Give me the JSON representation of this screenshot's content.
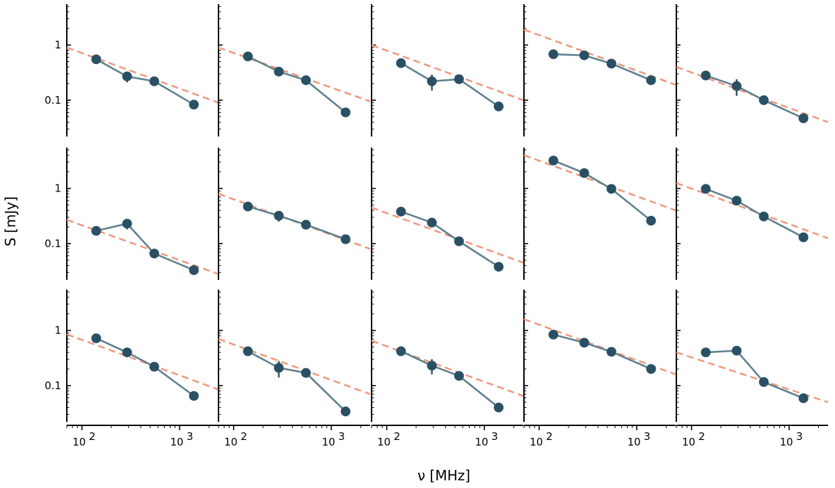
{
  "figure": {
    "xlabel": "ν [MHz]",
    "ylabel": "S [mJy]",
    "x_tick_labels": [
      {
        "base": "10",
        "exp": "2",
        "value": 100
      },
      {
        "base": "10",
        "exp": "3",
        "value": 1000
      }
    ],
    "y_tick_labels": [
      {
        "text": "1",
        "value": 1
      },
      {
        "text": "0.1",
        "value": 0.1
      }
    ],
    "colors": {
      "data": "#2a5064",
      "data_line": "#5f808e",
      "fit": "#ef9a7f",
      "axis": "#000000"
    }
  },
  "chart_data": {
    "type": "line",
    "layout": "3x5 grid of small multiples with shared log-log axes",
    "xscale": "log",
    "yscale": "log",
    "xlim": [
      70,
      2500
    ],
    "ylim": [
      0.022,
      5.5
    ],
    "xlabel": "ν [MHz]",
    "ylabel": "S [mJy]",
    "frequencies_MHz": [
      140,
      290,
      550,
      1400
    ],
    "fit_x_MHz": [
      70,
      2500
    ],
    "panels": [
      {
        "flux": [
          0.55,
          0.27,
          0.22,
          0.083
        ],
        "err": [
          0,
          0.06,
          0,
          0
        ],
        "fit_endpoints": [
          0.9,
          0.09
        ]
      },
      {
        "flux": [
          0.62,
          0.33,
          0.23,
          0.06
        ],
        "err": [
          0,
          0.05,
          0,
          0
        ],
        "fit_endpoints": [
          0.9,
          0.095
        ]
      },
      {
        "flux": [
          0.47,
          0.22,
          0.24,
          0.077
        ],
        "err": [
          0,
          0.07,
          0,
          0
        ],
        "fit_endpoints": [
          1.0,
          0.1
        ]
      },
      {
        "flux": [
          0.68,
          0.65,
          0.46,
          0.23
        ],
        "err": [
          0,
          0,
          0,
          0
        ],
        "fit_endpoints": [
          1.9,
          0.19
        ]
      },
      {
        "flux": [
          0.28,
          0.18,
          0.1,
          0.047
        ],
        "err": [
          0,
          0.06,
          0,
          0
        ],
        "fit_endpoints": [
          0.4,
          0.04
        ]
      },
      {
        "flux": [
          0.17,
          0.23,
          0.066,
          0.033
        ],
        "err": [
          0,
          0.05,
          0.012,
          0
        ],
        "fit_endpoints": [
          0.27,
          0.028
        ]
      },
      {
        "flux": [
          0.47,
          0.32,
          0.22,
          0.12
        ],
        "err": [
          0,
          0.07,
          0,
          0
        ],
        "fit_endpoints": [
          0.8,
          0.08
        ]
      },
      {
        "flux": [
          0.38,
          0.24,
          0.11,
          0.038
        ],
        "err": [
          0,
          0,
          0,
          0
        ],
        "fit_endpoints": [
          0.45,
          0.045
        ]
      },
      {
        "flux": [
          3.2,
          1.9,
          0.98,
          0.26
        ],
        "err": [
          0,
          0,
          0,
          0
        ],
        "fit_endpoints": [
          4.0,
          0.4
        ]
      },
      {
        "flux": [
          0.98,
          0.6,
          0.31,
          0.13
        ],
        "err": [
          0,
          0,
          0,
          0
        ],
        "fit_endpoints": [
          1.25,
          0.125
        ]
      },
      {
        "flux": [
          0.72,
          0.4,
          0.22,
          0.065
        ],
        "err": [
          0,
          0,
          0,
          0
        ],
        "fit_endpoints": [
          0.85,
          0.085
        ]
      },
      {
        "flux": [
          0.42,
          0.21,
          0.17,
          0.034
        ],
        "err": [
          0,
          0.07,
          0,
          0
        ],
        "fit_endpoints": [
          0.7,
          0.07
        ]
      },
      {
        "flux": [
          0.42,
          0.23,
          0.15,
          0.04
        ],
        "err": [
          0,
          0.07,
          0,
          0
        ],
        "fit_endpoints": [
          0.65,
          0.065
        ]
      },
      {
        "flux": [
          0.84,
          0.6,
          0.41,
          0.2
        ],
        "err": [
          0,
          0,
          0,
          0
        ],
        "fit_endpoints": [
          1.6,
          0.16
        ]
      },
      {
        "flux": [
          0.4,
          0.43,
          0.116,
          0.059
        ],
        "err": [
          0,
          0,
          0,
          0
        ],
        "fit_endpoints": [
          0.4,
          0.05
        ]
      }
    ]
  }
}
